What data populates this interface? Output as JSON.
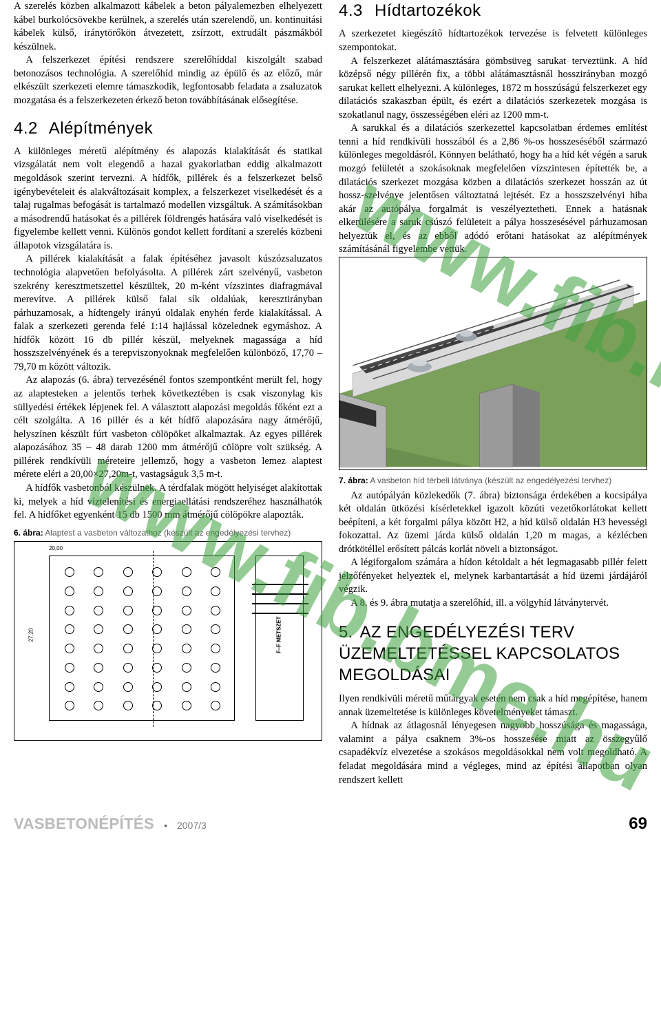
{
  "watermark": "www.fib.bme.hu",
  "col1": {
    "p1": "A szerelés közben alkalmazott kábelek a beton pályalemezben elhelyezett kábel burkolócsövekbe kerülnek, a szerelés után szerelendő, un. kontinuitási kábelek külső, iránytörőkön átvezetett, zsírzott, extrudált pászmákból készülnek.",
    "p2": "A felszerkezet építési rendszere szerelőhíddal kiszolgált szabad betonozásos technológia. A szerelőhíd mindig az épülő és az előző, már elkészült szerkezeti elemre támaszkodik, legfontosabb feladata a zsaluzatok mozgatása és a felszerkezeten érkező beton továbbításának elősegítése.",
    "sec42_num": "4.2",
    "sec42_title": "Alépítmények",
    "p3": "A különleges méretű alépítmény és alapozás kialakítását és statikai vizsgálatát nem volt elegendő a hazai gyakorlatban eddig alkalmazott megoldások szerint tervezni. A hídfők, pillérek és a felszerkezet belső igénybevételeit és alakváltozásait komplex, a felszerkezet viselkedését és a talaj rugalmas befogását is tartalmazó modellen vizsgáltuk. A számításokban a másodrendű hatásokat és a pillérek földrengés hatására való viselkedését is figyelembe kellett venni. Különös gondot kellett fordítani a szerelés közbeni állapotok vizsgálatára is.",
    "p4": "A pillérek kialakítását a falak építéséhez javasolt kúszózsaluzatos technológia alapvetően befolyásolta. A pillérek zárt szelvényű, vasbeton szekrény keresztmetszettel készültek, 20 m-ként vízszintes diafragmával merevítve. A pillérek külső falai sík oldalúak, keresztirányban párhuzamosak, a hídtengely irányú oldalak enyhén ferde kialakítással. A falak a szerkezeti gerenda felé 1:14 hajlással közelednek egymáshoz. A hídfők között 16 db pillér készül, melyeknek magassága a híd hosszszelvényének és a terepviszonyoknak megfelelően különböző, 17,70 – 79,70 m között változik.",
    "p5": "Az alapozás (6. ábra) tervezésénél fontos szempontként merült fel, hogy az alaptesteken a jelentős terhek következtében is csak viszonylag kis süllyedési értékek lépjenek fel. A választott alapozási megoldás főként ezt a célt szolgálta. A 16 pillér és a két hídfő alapozására nagy átmérőjű, helyszínen készült fúrt vasbeton cölöpöket alkalmaztak. Az egyes pillérek alapozásához 35 – 48 darab 1200 mm átmérőjű cölöpre volt szükség. A pillérek rendkívüli méreteire jellemző, hogy a vasbeton lemez alaptest mérete eléri a 20,00×27,20m-t, vastagságuk 3,5 m-t.",
    "p6": "A hídfők vasbetonból készülnek. A térdfalak mögött helyiséget alakítottak ki, melyek a híd víztelenítési és energiaellátási rendszeréhez használhatók fel. A hídfőket egyenként 15 db 1500 mm átmérőjű cölöpökre alapozták.",
    "cap6_b": "6. ábra:",
    "cap6": " Alaptest a vasbeton változathoz (készült az engedélyezési tervhez)",
    "fig6": {
      "dims_plan": [
        "20,00",
        "27,20"
      ],
      "section_label": "F–F METSZET"
    }
  },
  "col2": {
    "sec43_num": "4.3",
    "sec43_title": "Hídtartozékok",
    "p1": "A szerkezetet kiegészítő hídtartozékok tervezése is felvetett különleges szempontokat.",
    "p2": "A felszerkezet alátámasztására gömbsüveg sarukat terveztünk. A híd középső négy pillérén fix, a többi alátámasztásnál hosszirányban mozgó sarukat kellett elhelyezni. A különleges, 1872 m hosszúságú felszerkezet egy dilatációs szakaszban épült, és ezért a dilatációs szerkezetek mozgása is szokatlanul nagy, összességében eléri az 1200 mm-t.",
    "p3": "A sarukkal és a dilatációs szerkezettel kapcsolatban érdemes említést tenni a híd rendkívüli hosszából és a 2,86 %-os hosszeséséből származó különleges megoldásról. Könnyen belátható, hogy ha a híd két végén a saruk mozgó felületét a szokásoknak megfelelően vízszintesen építették be, a dilatációs szerkezet mozgása közben a dilatációs szerkezet hosszán az út hossz-szelvénye jelentősen változtatná lejtését. Ez a hosszszelvényi hiba akár az autópálya forgalmát is veszélyeztetheti. Ennek a hatásnak elkerülésére a saruk csúszó felületeit a pálya hosszesésével párhuzamosan helyeztük el, és az ebből adódó erőtani hatásokat az alépítmények számításánál figyelembe vettük.",
    "cap7_b": "7. ábra:",
    "cap7": " A vasbeton híd térbeli látványa (készült az engedélyezési tervhez)",
    "p4": "Az autópályán közlekedők (7. ábra) biztonsága érdekében a kocsipálya két oldalán ütközési kísérletekkel igazolt közúti vezetőkorlátokat kellett beépíteni, a két forgalmi pálya között H2, a híd külső oldalán H3 hevességi fokozattal. Az üzemi járda külső oldalán 1,20 m magas, a kézlécben drótkötéllel erősített pálcás korlát növeli a biztonságot.",
    "p5": "A légiforgalom számára a hídon kétoldalt a hét legmagasabb pillér felett jelzőfényeket helyeztek el, melynek karbantartását a híd üzemi járdájáról végzik.",
    "p6": "A 8. és 9. ábra mutatja a szerelőhíd, ill. a völgyhíd látványtervét.",
    "sec5_num": "5.",
    "sec5_title": "Az engedélyezési terv üzemeltetéssel kapcsolatos megoldásai",
    "p7": "Ilyen rendkívüli méretű műtárgyak esetén nem csak a híd megépítése, hanem annak üzemeltetése is különleges követelményeket támaszt.",
    "p8": "A hídnak az átlagosnál lényegesen nagyobb hosszúsága és magassága, valamint a pálya csaknem 3%-os hosszesése miatt az összegyűlő csapadékvíz elvezetése a szokásos megoldásokkal nem volt megoldható. A feladat megoldására mind a végleges, mind az építési állapotban olyan rendszert kellett"
  },
  "footer": {
    "magazine": "VASBETONÉPÍTÉS",
    "issue": "2007/3",
    "pagenum": "69"
  },
  "colors": {
    "watermark": "rgba(60,160,60,0.55)",
    "road": "#3d3d3d",
    "grass": "#7aa05a",
    "concrete": "#dadada",
    "pier": "#9a9a9a"
  }
}
